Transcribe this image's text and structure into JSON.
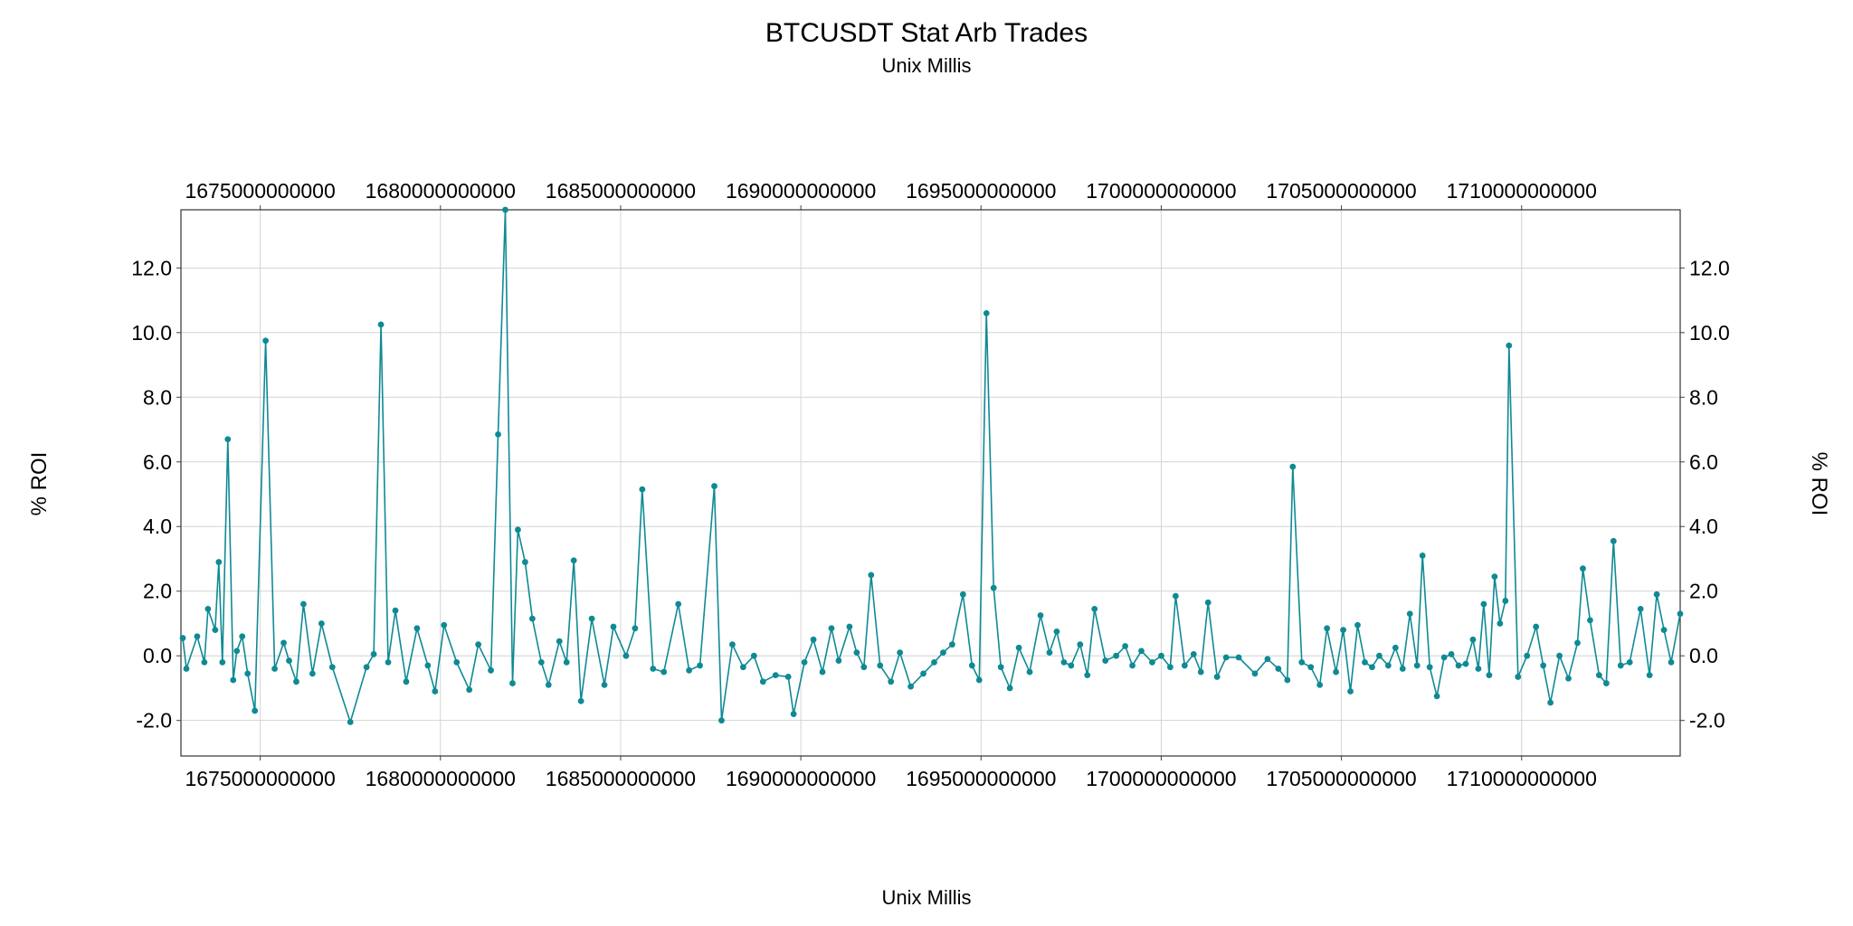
{
  "chart_data": {
    "type": "line",
    "title": "BTCUSDT Stat Arb Trades",
    "subtitle": "Unix Millis",
    "xlabel": "Unix Millis",
    "ylabel": "% ROI",
    "xlim": [
      1672800000000,
      1714400000000
    ],
    "ylim": [
      -3.1,
      13.8
    ],
    "xticks": [
      "1675000000000",
      "1680000000000",
      "1685000000000",
      "1690000000000",
      "1695000000000",
      "1700000000000",
      "1705000000000",
      "1710000000000"
    ],
    "yticks": [
      "-2.0",
      "0.0",
      "2.0",
      "4.0",
      "6.0",
      "8.0",
      "10.0",
      "12.0"
    ],
    "grid": true,
    "series": [
      {
        "name": "% ROI",
        "color": "#0f8a94",
        "points": [
          [
            1672850000000,
            0.55
          ],
          [
            1672950000000,
            -0.4
          ],
          [
            1673250000000,
            0.6
          ],
          [
            1673450000000,
            -0.2
          ],
          [
            1673550000000,
            1.45
          ],
          [
            1673750000000,
            0.8
          ],
          [
            1673850000000,
            2.9
          ],
          [
            1673950000000,
            -0.2
          ],
          [
            1674100000000,
            6.7
          ],
          [
            1674250000000,
            -0.75
          ],
          [
            1674350000000,
            0.15
          ],
          [
            1674500000000,
            0.6
          ],
          [
            1674650000000,
            -0.55
          ],
          [
            1674850000000,
            -1.7
          ],
          [
            1675150000000,
            9.75
          ],
          [
            1675400000000,
            -0.4
          ],
          [
            1675650000000,
            0.4
          ],
          [
            1675800000000,
            -0.15
          ],
          [
            1676000000000,
            -0.8
          ],
          [
            1676200000000,
            1.6
          ],
          [
            1676450000000,
            -0.55
          ],
          [
            1676700000000,
            1.0
          ],
          [
            1677000000000,
            -0.35
          ],
          [
            1677500000000,
            -2.05
          ],
          [
            1677950000000,
            -0.35
          ],
          [
            1678150000000,
            0.05
          ],
          [
            1678350000000,
            10.25
          ],
          [
            1678550000000,
            -0.2
          ],
          [
            1678750000000,
            1.4
          ],
          [
            1679050000000,
            -0.8
          ],
          [
            1679350000000,
            0.85
          ],
          [
            1679650000000,
            -0.3
          ],
          [
            1679850000000,
            -1.1
          ],
          [
            1680100000000,
            0.95
          ],
          [
            1680450000000,
            -0.2
          ],
          [
            1680800000000,
            -1.05
          ],
          [
            1681050000000,
            0.35
          ],
          [
            1681400000000,
            -0.45
          ],
          [
            1681600000000,
            6.85
          ],
          [
            1681800000000,
            13.8
          ],
          [
            1682000000000,
            -0.85
          ],
          [
            1682150000000,
            3.9
          ],
          [
            1682350000000,
            2.9
          ],
          [
            1682550000000,
            1.15
          ],
          [
            1682800000000,
            -0.2
          ],
          [
            1683000000000,
            -0.9
          ],
          [
            1683300000000,
            0.45
          ],
          [
            1683500000000,
            -0.2
          ],
          [
            1683700000000,
            2.95
          ],
          [
            1683900000000,
            -1.4
          ],
          [
            1684200000000,
            1.15
          ],
          [
            1684550000000,
            -0.9
          ],
          [
            1684800000000,
            0.9
          ],
          [
            1685150000000,
            0.0
          ],
          [
            1685400000000,
            0.85
          ],
          [
            1685600000000,
            5.15
          ],
          [
            1685900000000,
            -0.4
          ],
          [
            1686200000000,
            -0.5
          ],
          [
            1686600000000,
            1.6
          ],
          [
            1686900000000,
            -0.45
          ],
          [
            1687200000000,
            -0.3
          ],
          [
            1687600000000,
            5.25
          ],
          [
            1687800000000,
            -2.0
          ],
          [
            1688100000000,
            0.35
          ],
          [
            1688400000000,
            -0.35
          ],
          [
            1688700000000,
            0.0
          ],
          [
            1688950000000,
            -0.8
          ],
          [
            1689300000000,
            -0.6
          ],
          [
            1689650000000,
            -0.65
          ],
          [
            1689800000000,
            -1.8
          ],
          [
            1690100000000,
            -0.2
          ],
          [
            1690350000000,
            0.5
          ],
          [
            1690600000000,
            -0.5
          ],
          [
            1690850000000,
            0.85
          ],
          [
            1691050000000,
            -0.15
          ],
          [
            1691350000000,
            0.9
          ],
          [
            1691550000000,
            0.1
          ],
          [
            1691750000000,
            -0.35
          ],
          [
            1691950000000,
            2.5
          ],
          [
            1692200000000,
            -0.3
          ],
          [
            1692500000000,
            -0.8
          ],
          [
            1692750000000,
            0.1
          ],
          [
            1693050000000,
            -0.95
          ],
          [
            1693400000000,
            -0.55
          ],
          [
            1693700000000,
            -0.2
          ],
          [
            1693950000000,
            0.1
          ],
          [
            1694200000000,
            0.35
          ],
          [
            1694500000000,
            1.9
          ],
          [
            1694750000000,
            -0.3
          ],
          [
            1694950000000,
            -0.75
          ],
          [
            1695150000000,
            10.6
          ],
          [
            1695350000000,
            2.1
          ],
          [
            1695550000000,
            -0.35
          ],
          [
            1695800000000,
            -1.0
          ],
          [
            1696050000000,
            0.25
          ],
          [
            1696350000000,
            -0.5
          ],
          [
            1696650000000,
            1.25
          ],
          [
            1696900000000,
            0.1
          ],
          [
            1697100000000,
            0.75
          ],
          [
            1697300000000,
            -0.2
          ],
          [
            1697500000000,
            -0.3
          ],
          [
            1697750000000,
            0.35
          ],
          [
            1697950000000,
            -0.6
          ],
          [
            1698150000000,
            1.45
          ],
          [
            1698450000000,
            -0.15
          ],
          [
            1698750000000,
            0.0
          ],
          [
            1699000000000,
            0.3
          ],
          [
            1699200000000,
            -0.3
          ],
          [
            1699450000000,
            0.15
          ],
          [
            1699750000000,
            -0.2
          ],
          [
            1700000000000,
            0.0
          ],
          [
            1700250000000,
            -0.35
          ],
          [
            1700400000000,
            1.85
          ],
          [
            1700650000000,
            -0.3
          ],
          [
            1700900000000,
            0.05
          ],
          [
            1701100000000,
            -0.5
          ],
          [
            1701300000000,
            1.65
          ],
          [
            1701550000000,
            -0.65
          ],
          [
            1701800000000,
            -0.05
          ],
          [
            1702150000000,
            -0.05
          ],
          [
            1702600000000,
            -0.55
          ],
          [
            1702950000000,
            -0.1
          ],
          [
            1703250000000,
            -0.4
          ],
          [
            1703500000000,
            -0.75
          ],
          [
            1703650000000,
            5.85
          ],
          [
            1703900000000,
            -0.2
          ],
          [
            1704150000000,
            -0.35
          ],
          [
            1704400000000,
            -0.9
          ],
          [
            1704600000000,
            0.85
          ],
          [
            1704850000000,
            -0.5
          ],
          [
            1705050000000,
            0.8
          ],
          [
            1705250000000,
            -1.1
          ],
          [
            1705450000000,
            0.95
          ],
          [
            1705650000000,
            -0.2
          ],
          [
            1705850000000,
            -0.35
          ],
          [
            1706050000000,
            0.0
          ],
          [
            1706300000000,
            -0.3
          ],
          [
            1706500000000,
            0.25
          ],
          [
            1706700000000,
            -0.4
          ],
          [
            1706900000000,
            1.3
          ],
          [
            1707100000000,
            -0.3
          ],
          [
            1707250000000,
            3.1
          ],
          [
            1707450000000,
            -0.35
          ],
          [
            1707650000000,
            -1.25
          ],
          [
            1707850000000,
            -0.05
          ],
          [
            1708050000000,
            0.05
          ],
          [
            1708250000000,
            -0.3
          ],
          [
            1708450000000,
            -0.25
          ],
          [
            1708650000000,
            0.5
          ],
          [
            1708800000000,
            -0.4
          ],
          [
            1708950000000,
            1.6
          ],
          [
            1709100000000,
            -0.6
          ],
          [
            1709250000000,
            2.45
          ],
          [
            1709400000000,
            1.0
          ],
          [
            1709550000000,
            1.7
          ],
          [
            1709650000000,
            9.6
          ],
          [
            1709900000000,
            -0.65
          ],
          [
            1710150000000,
            0.0
          ],
          [
            1710400000000,
            0.9
          ],
          [
            1710600000000,
            -0.3
          ],
          [
            1710800000000,
            -1.45
          ],
          [
            1711050000000,
            0.0
          ],
          [
            1711300000000,
            -0.7
          ],
          [
            1711550000000,
            0.4
          ],
          [
            1711700000000,
            2.7
          ],
          [
            1711900000000,
            1.1
          ],
          [
            1712150000000,
            -0.6
          ],
          [
            1712350000000,
            -0.85
          ],
          [
            1712550000000,
            3.55
          ],
          [
            1712750000000,
            -0.3
          ],
          [
            1713000000000,
            -0.2
          ],
          [
            1713300000000,
            1.45
          ],
          [
            1713550000000,
            -0.6
          ],
          [
            1713750000000,
            1.9
          ],
          [
            1713950000000,
            0.8
          ],
          [
            1714150000000,
            -0.2
          ],
          [
            1714400000000,
            1.3
          ]
        ]
      }
    ]
  }
}
